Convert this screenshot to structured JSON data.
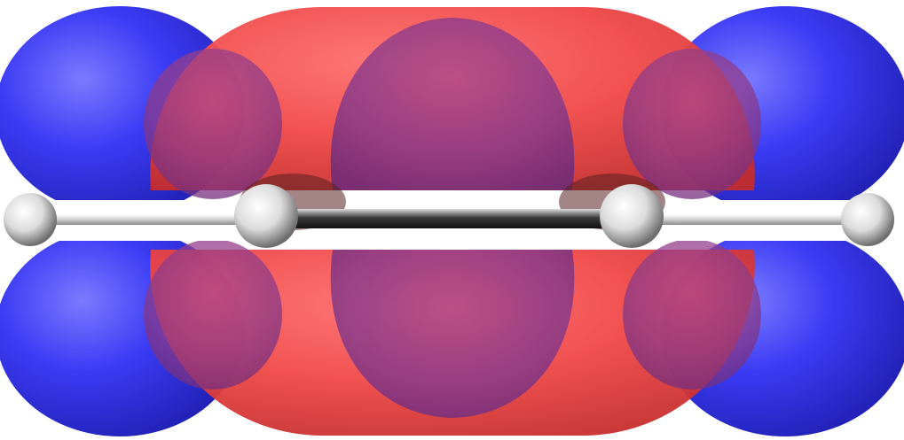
{
  "scene": {
    "subject": "molecular-orbital-isosurface",
    "colors": {
      "background": "#ffffff",
      "positive_lobe": "#ff3b3b",
      "negative_lobe": "#3a3aff",
      "atom_hydrogen": "#f2f2f2",
      "bond": "#2a2a2a"
    },
    "atoms_visible": 4,
    "lobes_per_half": 3
  }
}
